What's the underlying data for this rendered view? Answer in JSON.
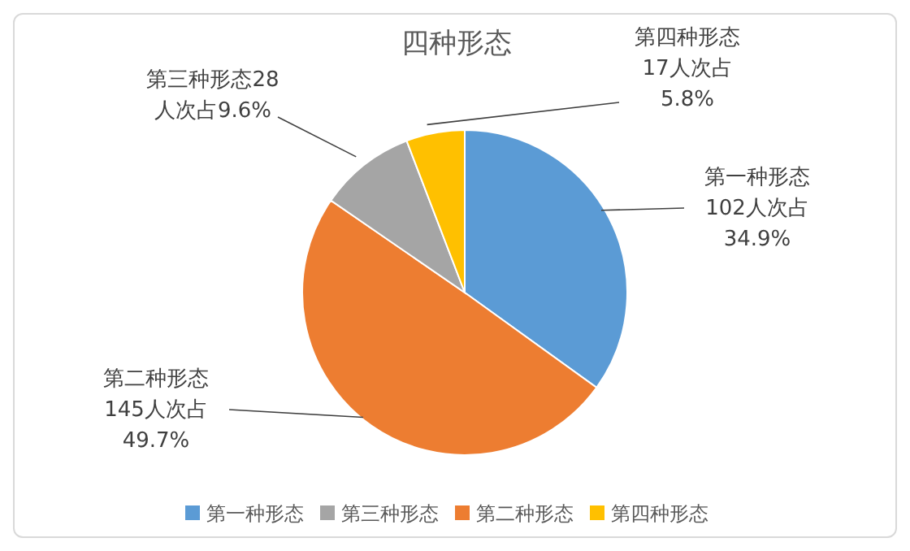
{
  "chart_data": {
    "type": "pie",
    "title": "四种形态",
    "categories": [
      "第一种形态",
      "第二种形态",
      "第三种形态",
      "第四种形态"
    ],
    "values": [
      102,
      145,
      28,
      17
    ],
    "colors": [
      "#5b9bd5",
      "#ed7d31",
      "#a5a5a5",
      "#ffc000"
    ],
    "value_labels": [
      "第一种形态\n102人次占\n34.9%",
      "第二种形态\n145人次占\n49.7%",
      "第三种形态28\n人次占9.6%",
      "第四种形态\n17人次占\n5.8%"
    ],
    "legend": "bottom"
  }
}
